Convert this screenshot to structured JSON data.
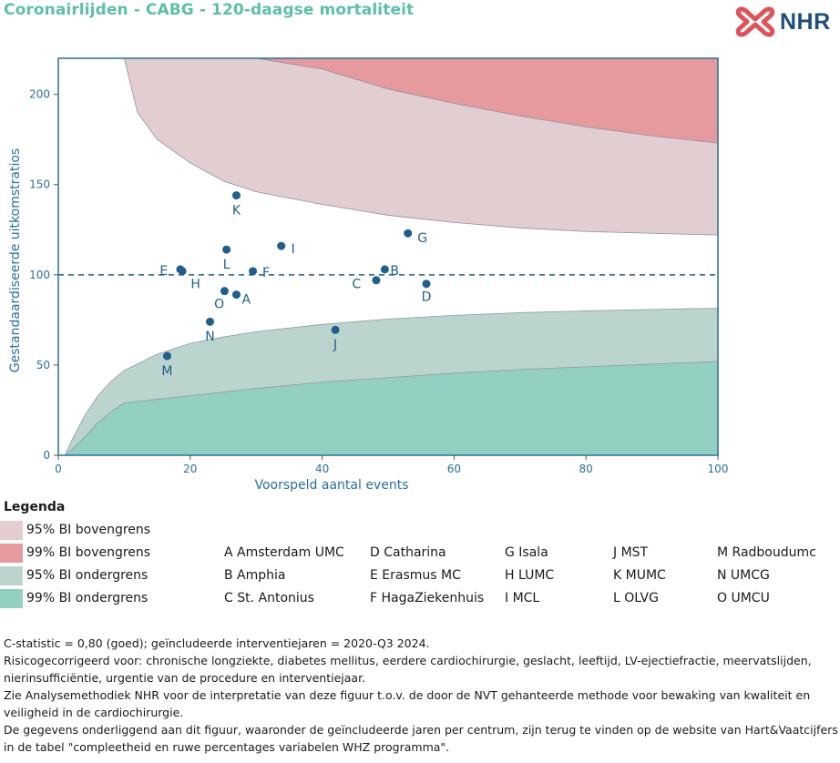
{
  "title": "Coronairlijden - CABG - 120-daagse mortaliteit",
  "logo": {
    "text": "NHR",
    "icon": "nhr-cross-logo-icon",
    "color": "#e0525a"
  },
  "chart_data": {
    "type": "scatter",
    "xlabel": "Voorspeld aantal events",
    "ylabel": "Gestandaardiseerde uitkomstratios",
    "xlim": [
      0,
      100
    ],
    "ylim": [
      0,
      220
    ],
    "xticks": [
      0,
      20,
      40,
      60,
      80,
      100
    ],
    "yticks": [
      0,
      50,
      100,
      150,
      200
    ],
    "reference_line": 100,
    "bands": [
      {
        "name": "95% BI bovengrens",
        "color": "#e2cdd0",
        "lower_x": [
          2,
          5,
          8,
          10,
          12,
          15,
          20,
          25,
          30,
          40,
          50,
          60,
          70,
          80,
          90,
          100
        ],
        "lower_y": [
          220,
          220,
          220,
          220,
          190,
          175,
          162,
          152,
          146,
          139,
          133,
          129,
          126,
          124,
          123,
          122
        ]
      },
      {
        "name": "99% BI bovengrens",
        "color": "#e69a9e",
        "lower_x": [
          10,
          20,
          30,
          40,
          50,
          60,
          70,
          80,
          90,
          100
        ],
        "lower_y": [
          220,
          220,
          220,
          214,
          203,
          195,
          188,
          182,
          177,
          173
        ]
      },
      {
        "name": "95% BI ondergrens",
        "color": "#bcd4ce",
        "upper_x": [
          1,
          2,
          4,
          6,
          8,
          10,
          15,
          20,
          25,
          30,
          40,
          50,
          60,
          70,
          80,
          90,
          100
        ],
        "upper_y": [
          0,
          8,
          22,
          33,
          41,
          47,
          56,
          62,
          65.5,
          68.5,
          72.5,
          75.5,
          77.5,
          79,
          80,
          80.8,
          81.5
        ]
      },
      {
        "name": "99% BI ondergrens",
        "color": "#93d0c2",
        "upper_x": [
          1,
          2,
          4,
          6,
          8,
          10,
          15,
          20,
          30,
          40,
          50,
          60,
          70,
          80,
          90,
          100
        ],
        "upper_y": [
          0,
          3,
          10,
          18,
          24,
          29,
          31,
          33,
          37,
          40.5,
          43,
          45.5,
          47.5,
          49,
          50.5,
          52
        ]
      }
    ],
    "point_color": "#1f5f8b",
    "points": [
      {
        "label": "A",
        "x": 27.0,
        "y": 89.0,
        "label_dx": 1.5,
        "label_dy": -2.5
      },
      {
        "label": "B",
        "x": 49.5,
        "y": 103.0,
        "label_dx": 1.5,
        "label_dy": -0.5
      },
      {
        "label": "C",
        "x": 48.2,
        "y": 97.0,
        "label_dx": -3.0,
        "label_dy": -2.0
      },
      {
        "label": "D",
        "x": 55.8,
        "y": 95.0,
        "label_dx": 0.0,
        "label_dy": -7.0
      },
      {
        "label": "E",
        "x": 18.5,
        "y": 103.0,
        "label_dx": -2.5,
        "label_dy": -0.5
      },
      {
        "label": "F",
        "x": 29.5,
        "y": 102.0,
        "label_dx": 2.0,
        "label_dy": -0.5
      },
      {
        "label": "G",
        "x": 53.0,
        "y": 123.0,
        "label_dx": 2.2,
        "label_dy": -2.5
      },
      {
        "label": "H",
        "x": 18.8,
        "y": 102.0,
        "label_dx": 2.0,
        "label_dy": -7.0
      },
      {
        "label": "I",
        "x": 33.8,
        "y": 116.0,
        "label_dx": 1.8,
        "label_dy": -1.5
      },
      {
        "label": "J",
        "x": 42.0,
        "y": 69.5,
        "label_dx": 0.0,
        "label_dy": -8.0
      },
      {
        "label": "K",
        "x": 27.0,
        "y": 144.0,
        "label_dx": 0.0,
        "label_dy": -8.0
      },
      {
        "label": "L",
        "x": 25.5,
        "y": 114.0,
        "label_dx": 0.0,
        "label_dy": -8.0
      },
      {
        "label": "M",
        "x": 16.5,
        "y": 55.0,
        "label_dx": 0.0,
        "label_dy": -8.0
      },
      {
        "label": "N",
        "x": 23.0,
        "y": 74.0,
        "label_dx": 0.0,
        "label_dy": -8.0
      },
      {
        "label": "O",
        "x": 25.2,
        "y": 91.0,
        "label_dx": -0.8,
        "label_dy": -7.0
      }
    ]
  },
  "legend": {
    "title": "Legenda",
    "items": [
      {
        "label": "95% BI bovengrens",
        "color": "#e2cdd0"
      },
      {
        "label": "99% BI bovengrens",
        "color": "#e69a9e"
      },
      {
        "label": "95% BI ondergrens",
        "color": "#bcd4ce"
      },
      {
        "label": "99% BI ondergrens",
        "color": "#93d0c2"
      }
    ]
  },
  "centres": [
    [
      "A Amsterdam UMC",
      "B Amphia",
      "C St. Antonius"
    ],
    [
      "D Catharina",
      "E Erasmus MC",
      "F HagaZiekenhuis"
    ],
    [
      "G Isala",
      "H LUMC",
      "I MCL"
    ],
    [
      "J MST",
      "K MUMC",
      "L OLVG"
    ],
    [
      "M Radboudumc",
      "N UMCG",
      "O UMCU"
    ]
  ],
  "notes": [
    "C-statistic =  0,80 (goed); geïncludeerde interventiejaren = 2020-Q3 2024.",
    "Risicogecorrigeerd voor: chronische longziekte, diabetes mellitus, eerdere cardiochirurgie, geslacht, leeftijd, LV-ejectiefractie, meervatslijden, nierinsufficiëntie, urgentie van de procedure en interventiejaar.",
    "Zie Analysemethodiek NHR voor de interpretatie van deze figuur t.o.v. de door de NVT gehanteerde methode voor bewaking van kwaliteit en veiligheid in de cardiochirurgie.",
    "De gegevens onderliggend aan dit figuur, waaronder de geïncludeerde jaren per centrum, zijn terug te vinden op de website van Hart&Vaatcijfers in de tabel \"compleetheid en ruwe percentages variabelen WHZ programma\"."
  ]
}
